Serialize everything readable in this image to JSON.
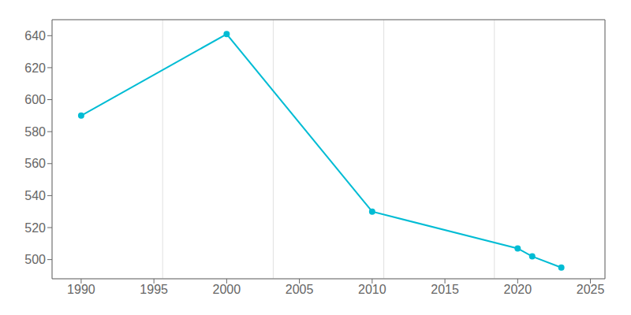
{
  "chart_data": {
    "type": "line",
    "x": [
      1990,
      2000,
      2010,
      2020,
      2021,
      2023
    ],
    "values": [
      590,
      641,
      530,
      507,
      502,
      495
    ],
    "color": "#00BCD4",
    "marker": "o",
    "xlim": [
      1988,
      2026
    ],
    "ylim": [
      488,
      650
    ],
    "xticks": [
      1990,
      1995,
      2000,
      2005,
      2010,
      2015,
      2020,
      2025
    ],
    "yticks": [
      500,
      520,
      540,
      560,
      580,
      600,
      620,
      640
    ],
    "grid": true
  }
}
